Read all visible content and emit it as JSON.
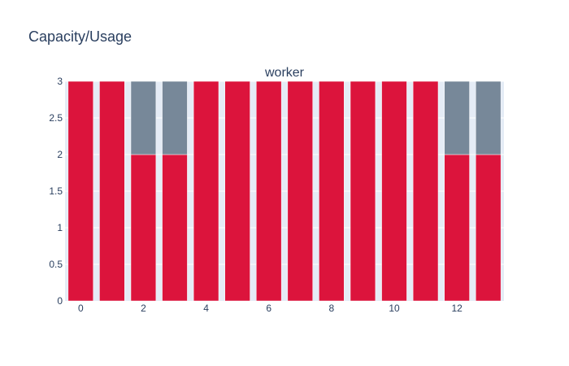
{
  "title": "Capacity/Usage",
  "chart_data": {
    "type": "bar",
    "title": "Capacity/Usage",
    "subtitle": "worker",
    "barmode": "stack",
    "categories": [
      0,
      1,
      2,
      3,
      4,
      5,
      6,
      7,
      8,
      9,
      10,
      11,
      12,
      13
    ],
    "series": [
      {
        "color": "#dc143c",
        "values": [
          3,
          3,
          2,
          2,
          3,
          3,
          3,
          3,
          3,
          3,
          3,
          3,
          2,
          2
        ]
      },
      {
        "color": "#778899",
        "values": [
          0,
          0,
          1,
          1,
          0,
          0,
          0,
          0,
          0,
          0,
          0,
          0,
          1,
          1
        ]
      }
    ],
    "xlim": [
      -0.5,
      13.5
    ],
    "ylim": [
      0,
      3
    ],
    "xticks": [
      0,
      2,
      4,
      6,
      8,
      10,
      12
    ],
    "yticks": [
      0,
      0.5,
      1,
      1.5,
      2,
      2.5,
      3
    ],
    "ytick_labels": [
      "0",
      "0.5",
      "1",
      "1.5",
      "2",
      "2.5",
      "3"
    ],
    "xlabel": "",
    "ylabel": "",
    "grid": true,
    "legend": "none",
    "plot_bg": "#e5ecf6"
  }
}
